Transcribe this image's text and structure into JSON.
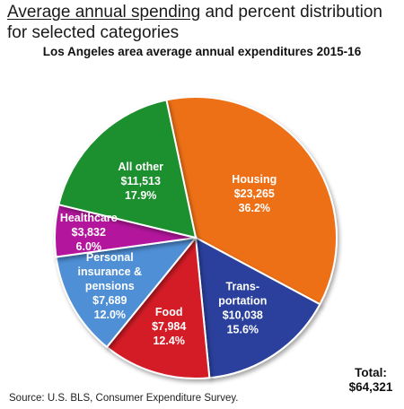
{
  "heading": {
    "underlined": "Average annual spending",
    "rest": " and percent distribution for selected categories"
  },
  "chart_data": {
    "type": "pie",
    "title": "Los Angeles area average annual expenditures 2015-16",
    "total_label": "Total:",
    "total_value": "$64,321",
    "slices": [
      {
        "lines": [
          "Housing"
        ],
        "amount": "$23,265",
        "percent_label": "36.2%",
        "value": 23265,
        "percent": 36.2,
        "color": "#ee6f16"
      },
      {
        "lines": [
          "Trans-",
          "portation"
        ],
        "amount": "$10,038",
        "percent_label": "15.6%",
        "value": 10038,
        "percent": 15.6,
        "color": "#2b3f9c"
      },
      {
        "lines": [
          "Food"
        ],
        "amount": "$7,984",
        "percent_label": "12.4%",
        "value": 7984,
        "percent": 12.4,
        "color": "#d41f26"
      },
      {
        "lines": [
          "Personal",
          "insurance &",
          "pensions"
        ],
        "amount": "$7,689",
        "percent_label": "12.0%",
        "value": 7689,
        "percent": 12.0,
        "color": "#4f8fd6"
      },
      {
        "lines": [
          "Healthcare"
        ],
        "amount": "$3,832",
        "percent_label": "6.0%",
        "value": 3832,
        "percent": 6.0,
        "color": "#b3169c"
      },
      {
        "lines": [
          "All other"
        ],
        "amount": "$11,513",
        "percent_label": "17.9%",
        "value": 11513,
        "percent": 17.9,
        "color": "#1e8f2e"
      }
    ]
  },
  "source": "Source: U.S. BLS, Consumer Expenditure Survey."
}
